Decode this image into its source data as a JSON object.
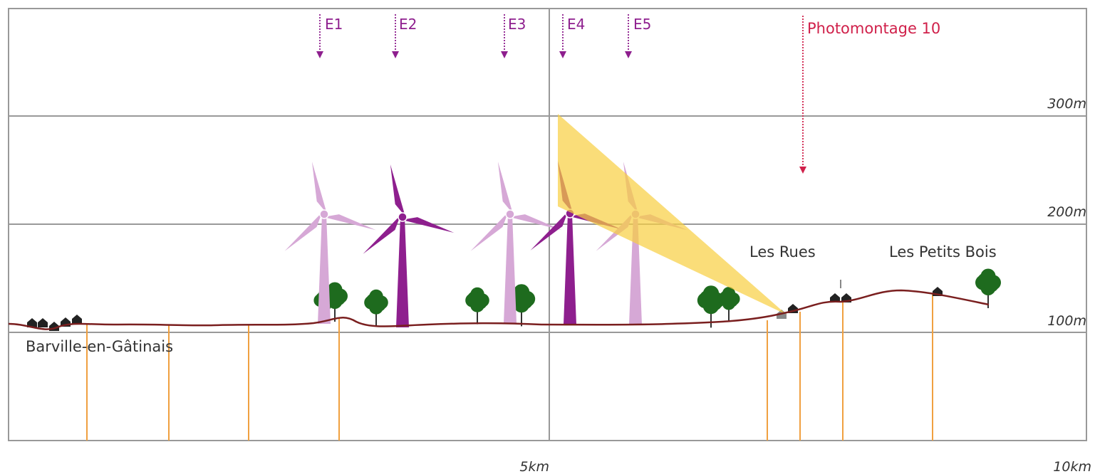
{
  "markers": [
    "E1",
    "E2",
    "E3",
    "E4",
    "E5"
  ],
  "photomontage": "Photomontage 10",
  "elevation_labels": [
    "300m",
    "200m",
    "100m"
  ],
  "distance_labels": [
    "5km",
    "10km"
  ],
  "places": [
    "Les Rues",
    "Les Petits Bois",
    "Barville-en-Gâtinais"
  ]
}
